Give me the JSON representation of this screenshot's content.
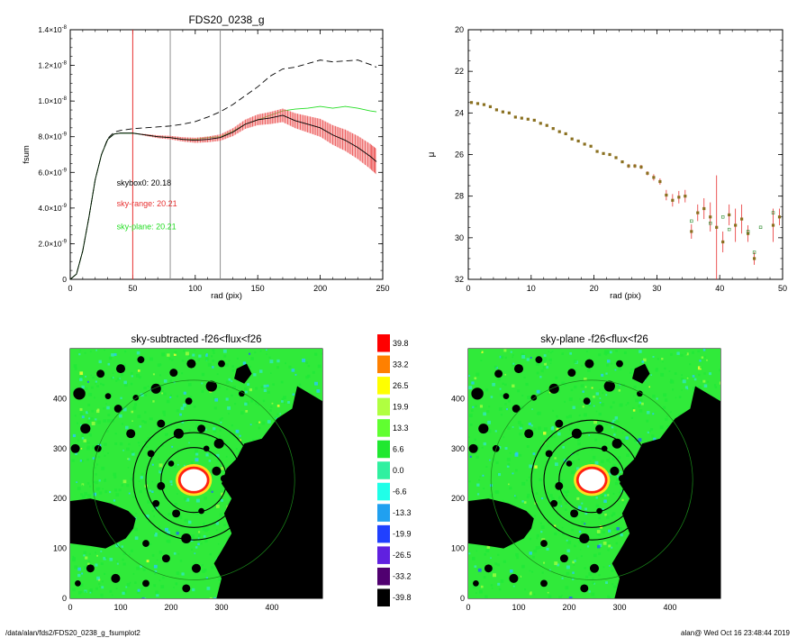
{
  "charts": [
    {
      "type": "line",
      "title": "FDS20_0238_g",
      "xlabel": "rad (pix)",
      "ylabel": "fsum",
      "xlim": [
        0,
        250
      ],
      "ylim": [
        0,
        1.4e-08
      ],
      "xticks": [
        0,
        50,
        100,
        150,
        200,
        250
      ],
      "yticks": [
        {
          "value": 0,
          "mant": "0",
          "exp": ""
        },
        {
          "value": 2e-09,
          "mant": "2.0×10",
          "exp": "-9"
        },
        {
          "value": 4e-09,
          "mant": "4.0×10",
          "exp": "-9"
        },
        {
          "value": 6e-09,
          "mant": "6.0×10",
          "exp": "-9"
        },
        {
          "value": 8e-09,
          "mant": "8.0×10",
          "exp": "-9"
        },
        {
          "value": 1e-08,
          "mant": "1.0×10",
          "exp": "-8"
        },
        {
          "value": 1.2e-08,
          "mant": "1.2×10",
          "exp": "-8"
        },
        {
          "value": 1.4e-08,
          "mant": "1.4×10",
          "exp": "-8"
        }
      ],
      "vlines": [
        {
          "x": 50,
          "color": "#e83030"
        },
        {
          "x": 80,
          "color": "#909090"
        },
        {
          "x": 120,
          "color": "#909090"
        }
      ],
      "annotations": [
        {
          "text": "skybox0: 20.18",
          "color": "#000000",
          "x": 30,
          "y": 5.25e-09
        },
        {
          "text": "sky-range: 20.21",
          "color": "#e83030",
          "x": 30,
          "y": 4.1e-09
        },
        {
          "text": "sky-plane: 20.21",
          "color": "#22dd22",
          "x": 30,
          "y": 2.8e-09
        }
      ],
      "series": [
        {
          "style": "dashed",
          "color": "#000000",
          "x": [
            0,
            5,
            10,
            15,
            20,
            25,
            30,
            35,
            40,
            50,
            60,
            70,
            80,
            90,
            100,
            110,
            120,
            130,
            140,
            150,
            160,
            170,
            180,
            190,
            200,
            210,
            220,
            230,
            240,
            245
          ],
          "y": [
            0,
            3e-10,
            1.6e-09,
            3.5e-09,
            5.6e-09,
            7e-09,
            7.9e-09,
            8.25e-09,
            8.35e-09,
            8.45e-09,
            8.5e-09,
            8.55e-09,
            8.6e-09,
            8.7e-09,
            8.85e-09,
            9.1e-09,
            9.4e-09,
            9.8e-09,
            1.03e-08,
            1.08e-08,
            1.14e-08,
            1.18e-08,
            1.19e-08,
            1.21e-08,
            1.23e-08,
            1.22e-08,
            1.225e-08,
            1.23e-08,
            1.205e-08,
            1.19e-08
          ]
        },
        {
          "style": "solid",
          "color": "#22dd22",
          "x": [
            0,
            5,
            10,
            15,
            20,
            25,
            30,
            35,
            40,
            50,
            60,
            70,
            80,
            90,
            100,
            110,
            120,
            130,
            140,
            150,
            160,
            170,
            180,
            190,
            200,
            210,
            220,
            230,
            240,
            245
          ],
          "y": [
            0,
            3e-10,
            1.6e-09,
            3.5e-09,
            5.6e-09,
            7e-09,
            7.85e-09,
            8.15e-09,
            8.2e-09,
            8.2e-09,
            8.1e-09,
            8e-09,
            7.95e-09,
            7.85e-09,
            7.85e-09,
            7.95e-09,
            8e-09,
            8.3e-09,
            8.7e-09,
            8.95e-09,
            9.2e-09,
            9.45e-09,
            9.55e-09,
            9.6e-09,
            9.7e-09,
            9.6e-09,
            9.7e-09,
            9.6e-09,
            9.45e-09,
            9.4e-09
          ]
        },
        {
          "style": "solid",
          "color": "#000000",
          "band_color": "#f08080",
          "bars_color": "#e83030",
          "x": [
            0,
            5,
            10,
            15,
            20,
            25,
            30,
            35,
            40,
            50,
            60,
            70,
            80,
            90,
            100,
            110,
            120,
            130,
            140,
            150,
            160,
            170,
            180,
            190,
            200,
            210,
            220,
            230,
            240,
            245
          ],
          "y": [
            0,
            3e-10,
            1.6e-09,
            3.5e-09,
            5.6e-09,
            7e-09,
            7.85e-09,
            8.15e-09,
            8.2e-09,
            8.2e-09,
            8.1e-09,
            8e-09,
            7.95e-09,
            7.85e-09,
            7.8e-09,
            7.85e-09,
            7.95e-09,
            8.25e-09,
            8.7e-09,
            8.95e-09,
            9.05e-09,
            9.2e-09,
            8.9e-09,
            8.7e-09,
            8.5e-09,
            8.1e-09,
            7.8e-09,
            7.4e-09,
            6.9e-09,
            6.6e-09
          ],
          "err": [
            0,
            0,
            0,
            0,
            0,
            0,
            0,
            0,
            0,
            0,
            5e-11,
            8e-11,
            1e-10,
            1.2e-10,
            1.4e-10,
            1.6e-10,
            1.8e-10,
            2.2e-10,
            2.6e-10,
            3e-10,
            3.4e-10,
            3.8e-10,
            4.2e-10,
            4.6e-10,
            5e-10,
            5.5e-10,
            6e-10,
            6.5e-10,
            7e-10,
            7.2e-10
          ]
        }
      ]
    },
    {
      "type": "scatter",
      "title": "",
      "xlabel": "rad (pix)",
      "ylabel": "μ",
      "xlim": [
        0,
        50
      ],
      "ylim": [
        32,
        20
      ],
      "xticks": [
        0,
        10,
        20,
        30,
        40,
        50
      ],
      "yticks": [
        20,
        22,
        24,
        26,
        28,
        30,
        32
      ],
      "points": [
        {
          "x": 0.5,
          "y": 23.5,
          "e": 0
        },
        {
          "x": 1.5,
          "y": 23.55,
          "e": 0
        },
        {
          "x": 2.5,
          "y": 23.6,
          "e": 0
        },
        {
          "x": 3.5,
          "y": 23.7,
          "e": 0
        },
        {
          "x": 4.5,
          "y": 23.85,
          "e": 0
        },
        {
          "x": 5.5,
          "y": 23.95,
          "e": 0
        },
        {
          "x": 6.5,
          "y": 24.0,
          "e": 0
        },
        {
          "x": 7.5,
          "y": 24.2,
          "e": 0
        },
        {
          "x": 8.5,
          "y": 24.25,
          "e": 0
        },
        {
          "x": 9.5,
          "y": 24.3,
          "e": 0
        },
        {
          "x": 10.5,
          "y": 24.35,
          "e": 0
        },
        {
          "x": 11.5,
          "y": 24.5,
          "e": 0
        },
        {
          "x": 12.5,
          "y": 24.6,
          "e": 0
        },
        {
          "x": 13.5,
          "y": 24.75,
          "e": 0
        },
        {
          "x": 14.5,
          "y": 24.9,
          "e": 0
        },
        {
          "x": 15.5,
          "y": 25.0,
          "e": 0
        },
        {
          "x": 16.5,
          "y": 25.25,
          "e": 0
        },
        {
          "x": 17.5,
          "y": 25.35,
          "e": 0
        },
        {
          "x": 18.5,
          "y": 25.5,
          "e": 0
        },
        {
          "x": 19.5,
          "y": 25.6,
          "e": 0
        },
        {
          "x": 20.5,
          "y": 25.85,
          "e": 0.05
        },
        {
          "x": 21.5,
          "y": 25.95,
          "e": 0.05
        },
        {
          "x": 22.5,
          "y": 26.0,
          "e": 0.05
        },
        {
          "x": 23.5,
          "y": 26.15,
          "e": 0.05
        },
        {
          "x": 24.5,
          "y": 26.35,
          "e": 0.05
        },
        {
          "x": 25.5,
          "y": 26.55,
          "e": 0.1
        },
        {
          "x": 26.5,
          "y": 26.55,
          "e": 0.1
        },
        {
          "x": 27.5,
          "y": 26.6,
          "e": 0.1
        },
        {
          "x": 28.5,
          "y": 26.9,
          "e": 0.1
        },
        {
          "x": 29.5,
          "y": 27.1,
          "e": 0.15
        },
        {
          "x": 30.5,
          "y": 27.3,
          "e": 0.15
        },
        {
          "x": 31.5,
          "y": 27.95,
          "e": 0.25
        },
        {
          "x": 32.5,
          "y": 28.2,
          "e": 0.3
        },
        {
          "x": 33.5,
          "y": 28.05,
          "e": 0.3
        },
        {
          "x": 34.5,
          "y": 28.0,
          "e": 0.3
        },
        {
          "x": 35.5,
          "y": 29.7,
          "e": 0.35
        },
        {
          "x": 36.5,
          "y": 28.8,
          "e": 0.4
        },
        {
          "x": 37.5,
          "y": 28.6,
          "e": 0.5
        },
        {
          "x": 38.5,
          "y": 29.0,
          "e": 0.7
        },
        {
          "x": 39.5,
          "y": 29.5,
          "e": 2.5
        },
        {
          "x": 40.5,
          "y": 30.2,
          "e": 0.5
        },
        {
          "x": 41.5,
          "y": 28.9,
          "e": 0.5
        },
        {
          "x": 42.5,
          "y": 29.4,
          "e": 0.8
        },
        {
          "x": 43.5,
          "y": 29.1,
          "e": 0.7
        },
        {
          "x": 44.5,
          "y": 29.8,
          "e": 0.4
        },
        {
          "x": 45.5,
          "y": 31.0,
          "e": 0.3
        },
        {
          "x": 48.5,
          "y": 29.4,
          "e": 0.8
        },
        {
          "x": 49.5,
          "y": 29.0,
          "e": 0.4
        }
      ],
      "open_points": [
        {
          "x": 35.5,
          "y": 29.2
        },
        {
          "x": 38.5,
          "y": 29.3
        },
        {
          "x": 40.5,
          "y": 29.0
        },
        {
          "x": 41.5,
          "y": 29.6
        },
        {
          "x": 44.5,
          "y": 29.7
        },
        {
          "x": 45.5,
          "y": 30.7
        },
        {
          "x": 46.5,
          "y": 29.5
        },
        {
          "x": 48.5,
          "y": 28.8
        }
      ]
    },
    {
      "type": "heatmap",
      "title": "sky-subtracted -f26<flux<f26",
      "xlim": [
        0,
        500
      ],
      "ylim": [
        0,
        500
      ],
      "xticks": [
        0,
        100,
        200,
        300,
        400
      ],
      "yticks": [
        0,
        100,
        200,
        300,
        400
      ]
    },
    {
      "type": "heatmap",
      "title": "sky-plane -f26<flux<f26",
      "xlim": [
        0,
        500
      ],
      "ylim": [
        0,
        500
      ],
      "xticks": [
        0,
        100,
        200,
        300,
        400
      ],
      "yticks": [
        0,
        100,
        200,
        300,
        400
      ]
    }
  ],
  "image_model": {
    "center": [
      245,
      237
    ],
    "rings": [
      65,
      95,
      120
    ],
    "green_ring": 200,
    "left_mask": [
      [
        0,
        195
      ],
      [
        40,
        200
      ],
      [
        80,
        190
      ],
      [
        115,
        175
      ],
      [
        130,
        160
      ],
      [
        125,
        140
      ],
      [
        110,
        120
      ],
      [
        70,
        100
      ],
      [
        40,
        105
      ],
      [
        0,
        110
      ]
    ],
    "right_mask": [
      [
        500,
        395
      ],
      [
        450,
        425
      ],
      [
        440,
        380
      ],
      [
        410,
        360
      ],
      [
        380,
        320
      ],
      [
        345,
        310
      ],
      [
        330,
        280
      ],
      [
        310,
        260
      ],
      [
        300,
        230
      ],
      [
        320,
        200
      ],
      [
        305,
        170
      ],
      [
        320,
        130
      ],
      [
        300,
        95
      ],
      [
        285,
        70
      ],
      [
        300,
        40
      ],
      [
        290,
        0
      ],
      [
        500,
        0
      ]
    ],
    "top_blob": [
      [
        330,
        460
      ],
      [
        350,
        470
      ],
      [
        360,
        450
      ],
      [
        345,
        430
      ],
      [
        325,
        440
      ]
    ],
    "blobs": [
      [
        18,
        410,
        12
      ],
      [
        60,
        450,
        8
      ],
      [
        100,
        460,
        9
      ],
      [
        140,
        478,
        7
      ],
      [
        170,
        420,
        10
      ],
      [
        205,
        452,
        8
      ],
      [
        240,
        470,
        9
      ],
      [
        280,
        425,
        11
      ],
      [
        300,
        470,
        7
      ],
      [
        130,
        402,
        6
      ],
      [
        95,
        380,
        8
      ],
      [
        30,
        340,
        10
      ],
      [
        10,
        300,
        9
      ],
      [
        55,
        300,
        7
      ],
      [
        120,
        330,
        9
      ],
      [
        180,
        350,
        8
      ],
      [
        215,
        330,
        10
      ],
      [
        260,
        340,
        8
      ],
      [
        295,
        310,
        10
      ],
      [
        160,
        290,
        7
      ],
      [
        200,
        270,
        6
      ],
      [
        290,
        255,
        9
      ],
      [
        305,
        240,
        7
      ],
      [
        180,
        225,
        8
      ],
      [
        170,
        190,
        7
      ],
      [
        210,
        170,
        8
      ],
      [
        260,
        175,
        6
      ],
      [
        230,
        120,
        10
      ],
      [
        150,
        110,
        7
      ],
      [
        190,
        80,
        8
      ],
      [
        250,
        60,
        9
      ],
      [
        230,
        20,
        8
      ],
      [
        150,
        30,
        7
      ],
      [
        90,
        40,
        9
      ],
      [
        40,
        60,
        8
      ],
      [
        15,
        30,
        6
      ],
      [
        110,
        140,
        6
      ],
      [
        270,
        300,
        6
      ],
      [
        235,
        395,
        7
      ],
      [
        75,
        405,
        6
      ],
      [
        340,
        410,
        6
      ]
    ]
  },
  "colorbar": {
    "labels": [
      "39.8",
      "33.2",
      "26.5",
      "19.9",
      "13.3",
      "6.6",
      "0.0",
      "-6.6",
      "-13.3",
      "-19.9",
      "-26.5",
      "-33.2",
      "-39.8"
    ],
    "colors": [
      "#ff0000",
      "#ff8000",
      "#ffff00",
      "#b0ff40",
      "#60ff30",
      "#20e830",
      "#30f0a0",
      "#20ffe8",
      "#20a0f0",
      "#2040ff",
      "#6020e0",
      "#500070",
      "#000000"
    ]
  },
  "footer": {
    "left": "/data/alan/fds2/FDS20_0238_g_fsumplot2",
    "right": "alan@  Wed Oct 16 23:48:44 2019"
  }
}
